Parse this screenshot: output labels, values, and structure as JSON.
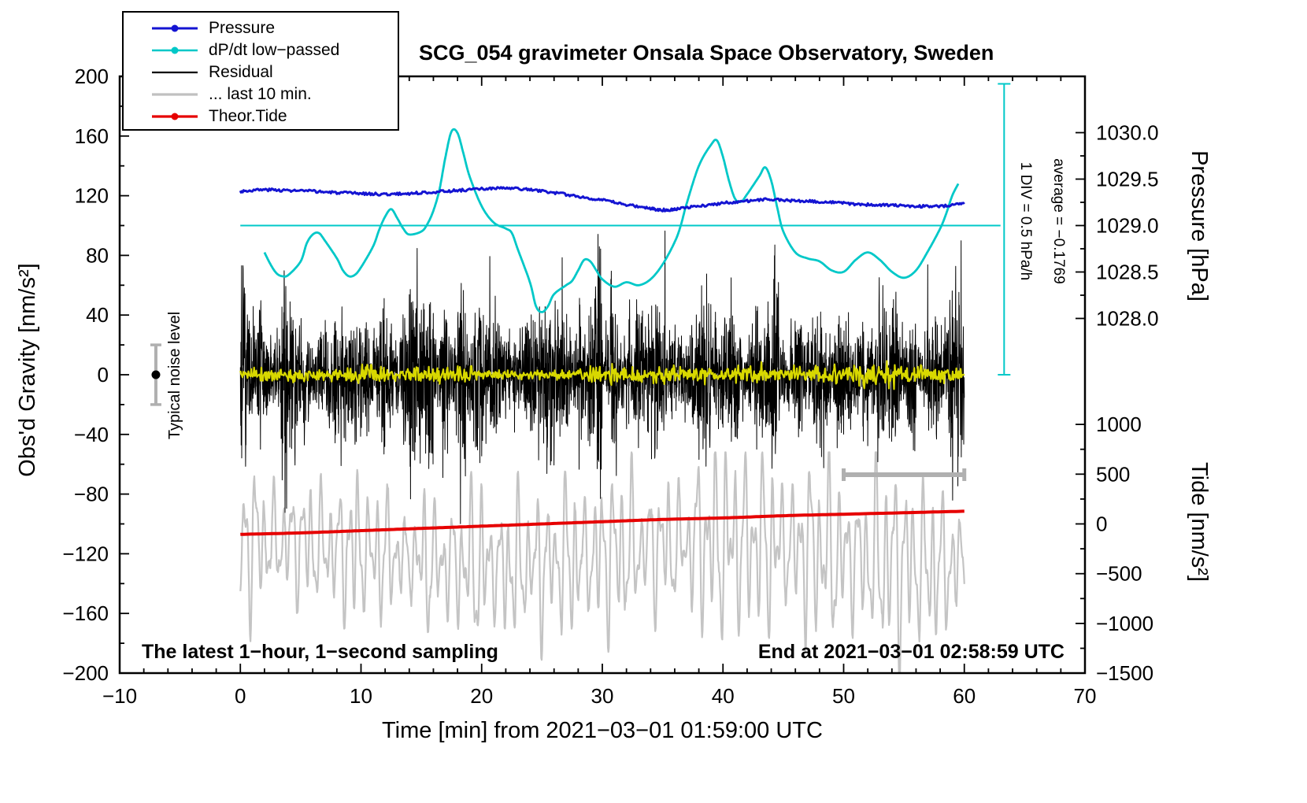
{
  "footer": {
    "sampling": "The latest 1−hour, 1−second sampling",
    "end_time": "End at 2021−03−01 02:58:59 UTC"
  },
  "annotations": {
    "noise_level": "Typical noise level",
    "div_scale": "1 DIV = 0.5 hPa/h",
    "average": "average = −0.1769"
  },
  "legend": [
    {
      "label": "Pressure",
      "color": "#1414d2",
      "marker": "dot-line",
      "weight": 3
    },
    {
      "label": "dP/dt low−passed",
      "color": "#00c8c8",
      "marker": "dot-line",
      "weight": 2.6
    },
    {
      "label": "Residual",
      "color": "#000000",
      "marker": "line",
      "weight": 2.2
    },
    {
      "label": "... last 10 min.",
      "color": "#c0c0c0",
      "marker": "line",
      "weight": 3.2
    },
    {
      "label": "Theor.Tide",
      "color": "#e60000",
      "marker": "dot-line",
      "weight": 3.2
    }
  ],
  "chart_data": {
    "type": "line",
    "title": "SCG_054 gravimeter Onsala Space Observatory, Sweden",
    "axes": {
      "x": {
        "label": "Time [min] from 2021−03−01 01:59:00 UTC",
        "lim": [
          -10,
          70
        ],
        "ticks": [
          -10,
          0,
          10,
          20,
          30,
          40,
          50,
          60,
          70
        ],
        "minor_step": 2
      },
      "y_left": {
        "label": "Obs'd Gravity [nm/s²]",
        "lim": [
          -200,
          200
        ],
        "ticks": [
          -200,
          -160,
          -120,
          -80,
          -40,
          0,
          40,
          80,
          120,
          160,
          200
        ],
        "minor_step": 20
      },
      "y_right_pressure": {
        "label": "Pressure [hPa]",
        "tick_labels": [
          "1030.0",
          "1029.5",
          "1029.0",
          "1028.5",
          "1028.0"
        ]
      },
      "y_right_tide": {
        "label": "Tide [nm/s²]",
        "ticks": [
          1000,
          500,
          0,
          -500,
          -1000,
          -1500
        ]
      }
    },
    "series": [
      {
        "name": "... last 10 min.",
        "render": "wave",
        "color": "#c4c4c4",
        "width": 2.2,
        "params": {
          "x_range": [
            0,
            60
          ],
          "n": 1500,
          "center": -120,
          "amp": [
            26,
            72
          ],
          "clamp": [
            -204,
            -52
          ],
          "seed": 5
        }
      },
      {
        "name": "Theor.Tide",
        "render": "smooth",
        "color": "#e60000",
        "width": 4,
        "points": [
          [
            0,
            -107
          ],
          [
            5,
            -106
          ],
          [
            10,
            -104.5
          ],
          [
            15,
            -103
          ],
          [
            20,
            -101.5
          ],
          [
            25,
            -100
          ],
          [
            30,
            -98.5
          ],
          [
            35,
            -97
          ],
          [
            40,
            -96
          ],
          [
            45,
            -94.5
          ],
          [
            50,
            -93.5
          ],
          [
            55,
            -92.5
          ],
          [
            60,
            -91.5
          ]
        ]
      },
      {
        "name": "Residual",
        "render": "noise",
        "color": "#000000",
        "width": 1,
        "params": {
          "x_range": [
            0,
            60
          ],
          "n": 3600,
          "center": 0,
          "amplitude": 35,
          "burst_prob": 0.2,
          "clamp": 112,
          "seed": 7
        }
      },
      {
        "name": "residual-smoothed",
        "render": "noise",
        "color": "#d8d800",
        "width": 2.2,
        "params": {
          "x_range": [
            0,
            60
          ],
          "n": 1000,
          "center": 0,
          "amplitude": 5,
          "burst_prob": 0,
          "clamp": 10,
          "seed": 11
        }
      },
      {
        "name": "dP/dt low−passed",
        "render": "smooth",
        "color": "#00c8c8",
        "width": 2.8,
        "points": [
          [
            2,
            82
          ],
          [
            2.5,
            74
          ],
          [
            3,
            68
          ],
          [
            3.5,
            66
          ],
          [
            4,
            67
          ],
          [
            5,
            76
          ],
          [
            5.5,
            88
          ],
          [
            6,
            94
          ],
          [
            6.5,
            95
          ],
          [
            7,
            90
          ],
          [
            8,
            78
          ],
          [
            8.5,
            70
          ],
          [
            9,
            66
          ],
          [
            9.5,
            67
          ],
          [
            10,
            72
          ],
          [
            11,
            86
          ],
          [
            11.5,
            97
          ],
          [
            12,
            106
          ],
          [
            12.5,
            111
          ],
          [
            13,
            105
          ],
          [
            13.5,
            98
          ],
          [
            14,
            94
          ],
          [
            15,
            96
          ],
          [
            15.5,
            101
          ],
          [
            16,
            110
          ],
          [
            16.5,
            124
          ],
          [
            17,
            146
          ],
          [
            17.5,
            163
          ],
          [
            18,
            162
          ],
          [
            18.5,
            148
          ],
          [
            19,
            133
          ],
          [
            20,
            113
          ],
          [
            21,
            102
          ],
          [
            22,
            98
          ],
          [
            22.5,
            95
          ],
          [
            23,
            84
          ],
          [
            24,
            62
          ],
          [
            24.5,
            46
          ],
          [
            25,
            42
          ],
          [
            25.5,
            46
          ],
          [
            26,
            54
          ],
          [
            27,
            60
          ],
          [
            27.5,
            63
          ],
          [
            28,
            70
          ],
          [
            28.5,
            77
          ],
          [
            29,
            76
          ],
          [
            29.5,
            70
          ],
          [
            30,
            64
          ],
          [
            31,
            59
          ],
          [
            32,
            62
          ],
          [
            33,
            60
          ],
          [
            34,
            64
          ],
          [
            35,
            74
          ],
          [
            36,
            89
          ],
          [
            36.5,
            100
          ],
          [
            37,
            115
          ],
          [
            38,
            140
          ],
          [
            39,
            154
          ],
          [
            39.5,
            157
          ],
          [
            40,
            146
          ],
          [
            40.5,
            130
          ],
          [
            41,
            118
          ],
          [
            41.5,
            116
          ],
          [
            42,
            121
          ],
          [
            43,
            133
          ],
          [
            43.5,
            139
          ],
          [
            44,
            130
          ],
          [
            44.5,
            112
          ],
          [
            45,
            96
          ],
          [
            46,
            82
          ],
          [
            47,
            78
          ],
          [
            48,
            76
          ],
          [
            49,
            70
          ],
          [
            50,
            69
          ],
          [
            51,
            77
          ],
          [
            52,
            82
          ],
          [
            53,
            77
          ],
          [
            54,
            69
          ],
          [
            55,
            65
          ],
          [
            56,
            70
          ],
          [
            57,
            83
          ],
          [
            58,
            98
          ],
          [
            58.5,
            108
          ],
          [
            59,
            120
          ],
          [
            59.5,
            128
          ]
        ]
      },
      {
        "name": "Pressure",
        "render": "smooth",
        "color": "#1414d2",
        "width": 3,
        "jitter": 0.9,
        "points": [
          [
            0,
            123
          ],
          [
            2,
            124
          ],
          [
            4,
            123.5
          ],
          [
            6,
            123
          ],
          [
            8,
            122
          ],
          [
            10,
            121.5
          ],
          [
            12,
            121
          ],
          [
            14,
            121.5
          ],
          [
            16,
            122.5
          ],
          [
            18,
            123.5
          ],
          [
            20,
            124.5
          ],
          [
            22,
            125
          ],
          [
            24,
            124
          ],
          [
            26,
            122
          ],
          [
            28,
            119.5
          ],
          [
            30,
            117
          ],
          [
            32,
            114
          ],
          [
            34,
            111.5
          ],
          [
            35,
            110.5
          ],
          [
            36,
            111
          ],
          [
            38,
            113
          ],
          [
            40,
            115
          ],
          [
            42,
            116.5
          ],
          [
            44,
            117.5
          ],
          [
            46,
            116.5
          ],
          [
            48,
            116
          ],
          [
            50,
            115
          ],
          [
            52,
            114
          ],
          [
            54,
            113.5
          ],
          [
            56,
            113
          ],
          [
            58,
            113
          ],
          [
            60,
            115
          ]
        ]
      }
    ],
    "reference": {
      "dpdt_zero_line": {
        "y": 100,
        "x_range": [
          0,
          63
        ]
      },
      "dpdt_scale_bar": {
        "x": 63.3,
        "y_range": [
          0,
          195
        ]
      },
      "residual_scale_bar": {
        "y": -67,
        "x_range": [
          50,
          60
        ]
      },
      "noise_marker": {
        "x": -7,
        "y": 0,
        "halfwidth": 20
      }
    }
  }
}
